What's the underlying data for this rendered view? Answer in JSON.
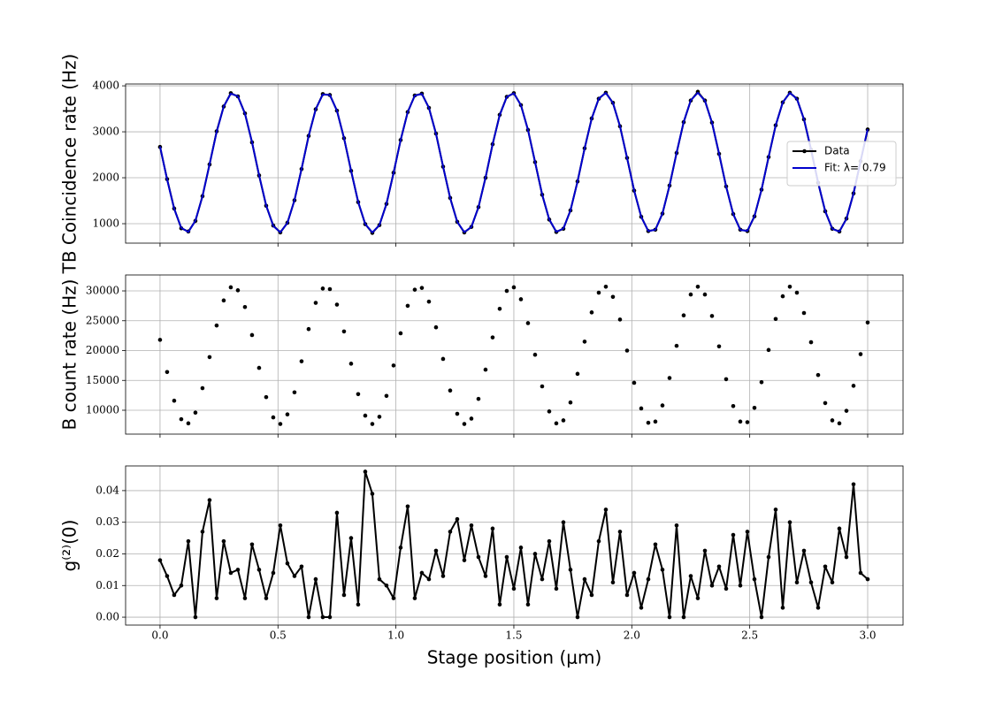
{
  "chart_data": [
    {
      "type": "line",
      "ylabel": "TB Coincidence rate (Hz)",
      "grid": true,
      "legend": "center right",
      "x": [
        0,
        0.03,
        0.06,
        0.09,
        0.12,
        0.15,
        0.18,
        0.21,
        0.24,
        0.27,
        0.3,
        0.33,
        0.36,
        0.39,
        0.42,
        0.45,
        0.48,
        0.51,
        0.54,
        0.57,
        0.6,
        0.63,
        0.66,
        0.69,
        0.72,
        0.75,
        0.78,
        0.81,
        0.84,
        0.87,
        0.9,
        0.93,
        0.96,
        0.99,
        1.02,
        1.05,
        1.08,
        1.11,
        1.14,
        1.17,
        1.2,
        1.23,
        1.26,
        1.29,
        1.32,
        1.35,
        1.38,
        1.41,
        1.44,
        1.47,
        1.5,
        1.53,
        1.56,
        1.59,
        1.62,
        1.65,
        1.68,
        1.71,
        1.74,
        1.77,
        1.8,
        1.83,
        1.86,
        1.89,
        1.92,
        1.95,
        1.98,
        2.01,
        2.04,
        2.07,
        2.1,
        2.13,
        2.16,
        2.19,
        2.22,
        2.25,
        2.28,
        2.31,
        2.34,
        2.37,
        2.4,
        2.43,
        2.46,
        2.49,
        2.52,
        2.55,
        2.58,
        2.61,
        2.64,
        2.67,
        2.7,
        2.73,
        2.76,
        2.79,
        2.82,
        2.85,
        2.88,
        2.91,
        2.94,
        2.97,
        3
      ],
      "series": [
        {
          "name": "Data",
          "color": "#000000",
          "line": true,
          "marker": true,
          "values": [
            2670,
            1970,
            1330,
            900,
            830,
            1060,
            1600,
            2290,
            3010,
            3550,
            3840,
            3770,
            3400,
            2770,
            2050,
            1390,
            960,
            810,
            1020,
            1510,
            2190,
            2910,
            3490,
            3820,
            3800,
            3460,
            2860,
            2150,
            1470,
            990,
            800,
            970,
            1430,
            2110,
            2820,
            3430,
            3790,
            3830,
            3520,
            2960,
            2240,
            1560,
            1040,
            810,
            930,
            1360,
            2000,
            2730,
            3370,
            3760,
            3840,
            3580,
            3040,
            2340,
            1630,
            1090,
            820,
            890,
            1290,
            1920,
            2640,
            3290,
            3720,
            3850,
            3630,
            3120,
            2430,
            1720,
            1150,
            840,
            870,
            1220,
            1830,
            2540,
            3210,
            3680,
            3870,
            3680,
            3200,
            2520,
            1810,
            1210,
            870,
            840,
            1160,
            1740,
            2450,
            3140,
            3640,
            3850,
            3720,
            3270,
            2610,
            1890,
            1270,
            890,
            830,
            1110,
            1660,
            2360,
            3050
          ]
        },
        {
          "name": "Fit: λ= 0.79",
          "color": "#0000cc",
          "line": true,
          "marker": false,
          "values": [
            2680,
            1959,
            1322,
            910,
            819,
            1067,
            1597,
            2294,
            2996,
            3551,
            3830,
            3774,
            3394,
            2774,
            2055,
            1398,
            950,
            812,
            1015,
            1514,
            2195,
            2906,
            3490,
            3812,
            3801,
            3459,
            2865,
            2151,
            1476,
            992,
            810,
            968,
            1435,
            2100,
            2818,
            3426,
            3788,
            3823,
            3522,
            2953,
            2245,
            1556,
            1040,
            815,
            930,
            1359,
            2006,
            2728,
            3359,
            3759,
            3838,
            3578,
            3038,
            2338,
            1637,
            1093,
            825,
            895,
            1289,
            1917,
            2636,
            3286,
            3724,
            3847,
            3628,
            3117,
            2430,
            1722,
            1149,
            840,
            868,
            1223,
            1827,
            2544,
            3215,
            3684,
            3850,
            3675,
            3198,
            2523,
            1807,
            1210,
            863,
            845,
            1163,
            1740,
            2452,
            3137,
            3640,
            3848,
            3715,
            3272,
            2614,
            1895,
            1274,
            889,
            828,
            1105,
            1657,
            2362,
            3058
          ]
        }
      ],
      "xlim": [
        -0.146,
        3.15
      ],
      "xticks": [
        0,
        0.5,
        1,
        1.5,
        2,
        2.5,
        3
      ],
      "ylim": [
        577,
        4040
      ],
      "yticks": [
        1000,
        2000,
        3000,
        4000
      ]
    },
    {
      "type": "scatter",
      "ylabel": "B count rate (Hz)",
      "grid": true,
      "x": [
        0,
        0.03,
        0.06,
        0.09,
        0.12,
        0.15,
        0.18,
        0.21,
        0.24,
        0.27,
        0.3,
        0.33,
        0.36,
        0.39,
        0.42,
        0.45,
        0.48,
        0.51,
        0.54,
        0.57,
        0.6,
        0.63,
        0.66,
        0.69,
        0.72,
        0.75,
        0.78,
        0.81,
        0.84,
        0.87,
        0.9,
        0.93,
        0.96,
        0.99,
        1.02,
        1.05,
        1.08,
        1.11,
        1.14,
        1.17,
        1.2,
        1.23,
        1.26,
        1.29,
        1.32,
        1.35,
        1.38,
        1.41,
        1.44,
        1.47,
        1.5,
        1.53,
        1.56,
        1.59,
        1.62,
        1.65,
        1.68,
        1.71,
        1.74,
        1.77,
        1.8,
        1.83,
        1.86,
        1.89,
        1.92,
        1.95,
        1.98,
        2.01,
        2.04,
        2.07,
        2.1,
        2.13,
        2.16,
        2.19,
        2.22,
        2.25,
        2.28,
        2.31,
        2.34,
        2.37,
        2.4,
        2.43,
        2.46,
        2.49,
        2.52,
        2.55,
        2.58,
        2.61,
        2.64,
        2.67,
        2.7,
        2.73,
        2.76,
        2.79,
        2.82,
        2.85,
        2.88,
        2.91,
        2.94,
        2.97,
        3
      ],
      "series": [
        {
          "color": "#000000",
          "line": false,
          "marker": true,
          "values": [
            21800,
            16400,
            11600,
            8500,
            7800,
            9600,
            13700,
            18900,
            24200,
            28400,
            30600,
            30100,
            27300,
            22600,
            17100,
            12200,
            8800,
            7700,
            9300,
            13000,
            18200,
            23600,
            28000,
            30400,
            30300,
            27700,
            23200,
            17800,
            12700,
            9100,
            7700,
            8900,
            12400,
            17500,
            22900,
            27500,
            30200,
            30500,
            28200,
            23900,
            18600,
            13300,
            9400,
            7700,
            8600,
            11900,
            16800,
            22200,
            27000,
            30000,
            30600,
            28600,
            24600,
            19300,
            14000,
            9800,
            7800,
            8300,
            11300,
            16100,
            21500,
            26400,
            29700,
            30700,
            29000,
            25200,
            20000,
            14600,
            10300,
            7900,
            8100,
            10800,
            15400,
            20800,
            25900,
            29400,
            30700,
            29400,
            25800,
            20700,
            15200,
            10700,
            8100,
            8000,
            10400,
            14700,
            20100,
            25300,
            29100,
            30700,
            29700,
            26300,
            21400,
            15900,
            11200,
            8300,
            7800,
            9900,
            14100,
            19400,
            24700
          ]
        }
      ],
      "xlim": [
        -0.146,
        3.15
      ],
      "xticks": [
        0,
        0.5,
        1,
        1.5,
        2,
        2.5,
        3
      ],
      "ylim": [
        6000,
        32670
      ],
      "yticks": [
        10000,
        15000,
        20000,
        25000,
        30000
      ]
    },
    {
      "type": "line",
      "ylabel": "g⁽²⁾(0)",
      "xlabel": "Stage position (μm)",
      "grid": true,
      "x": [
        0,
        0.03,
        0.06,
        0.09,
        0.12,
        0.15,
        0.18,
        0.21,
        0.24,
        0.27,
        0.3,
        0.33,
        0.36,
        0.39,
        0.42,
        0.45,
        0.48,
        0.51,
        0.54,
        0.57,
        0.6,
        0.63,
        0.66,
        0.69,
        0.72,
        0.75,
        0.78,
        0.81,
        0.84,
        0.87,
        0.9,
        0.93,
        0.96,
        0.99,
        1.02,
        1.05,
        1.08,
        1.11,
        1.14,
        1.17,
        1.2,
        1.23,
        1.26,
        1.29,
        1.32,
        1.35,
        1.38,
        1.41,
        1.44,
        1.47,
        1.5,
        1.53,
        1.56,
        1.59,
        1.62,
        1.65,
        1.68,
        1.71,
        1.74,
        1.77,
        1.8,
        1.83,
        1.86,
        1.89,
        1.92,
        1.95,
        1.98,
        2.01,
        2.04,
        2.07,
        2.1,
        2.13,
        2.16,
        2.19,
        2.22,
        2.25,
        2.28,
        2.31,
        2.34,
        2.37,
        2.4,
        2.43,
        2.46,
        2.49,
        2.52,
        2.55,
        2.58,
        2.61,
        2.64,
        2.67,
        2.7,
        2.73,
        2.76,
        2.79,
        2.82,
        2.85,
        2.88,
        2.91,
        2.94,
        2.97,
        3
      ],
      "series": [
        {
          "color": "#000000",
          "line": true,
          "marker": true,
          "values": [
            0.018,
            0.013,
            0.007,
            0.01,
            0.024,
            0,
            0.027,
            0.037,
            0.006,
            0.024,
            0.014,
            0.015,
            0.006,
            0.023,
            0.015,
            0.006,
            0.014,
            0.029,
            0.017,
            0.013,
            0.016,
            0,
            0.012,
            0,
            0,
            0.033,
            0.007,
            0.025,
            0.004,
            0.046,
            0.039,
            0.012,
            0.01,
            0.006,
            0.022,
            0.035,
            0.006,
            0.014,
            0.012,
            0.021,
            0.013,
            0.027,
            0.031,
            0.018,
            0.029,
            0.019,
            0.013,
            0.028,
            0.004,
            0.019,
            0.009,
            0.022,
            0.004,
            0.02,
            0.012,
            0.024,
            0.009,
            0.03,
            0.015,
            0,
            0.012,
            0.007,
            0.024,
            0.034,
            0.011,
            0.027,
            0.007,
            0.014,
            0.003,
            0.012,
            0.023,
            0.015,
            0,
            0.029,
            0,
            0.013,
            0.006,
            0.021,
            0.01,
            0.016,
            0.009,
            0.026,
            0.01,
            0.027,
            0.012,
            0,
            0.019,
            0.034,
            0.003,
            0.03,
            0.011,
            0.021,
            0.011,
            0.003,
            0.016,
            0.011,
            0.028,
            0.019,
            0.042,
            0.014,
            0.012
          ]
        }
      ],
      "xlim": [
        -0.146,
        3.15
      ],
      "xticks": [
        {
          "value": 0,
          "label": "0.0"
        },
        0.5,
        {
          "value": 1,
          "label": "1.0"
        },
        1.5,
        {
          "value": 2,
          "label": "2.0"
        },
        2.5,
        {
          "value": 3,
          "label": "3.0"
        }
      ],
      "ylim": [
        -0.0025,
        0.0478
      ],
      "yticks": [
        {
          "value": 0,
          "label": "0.00"
        },
        0.01,
        0.02,
        0.03,
        0.04
      ]
    }
  ]
}
